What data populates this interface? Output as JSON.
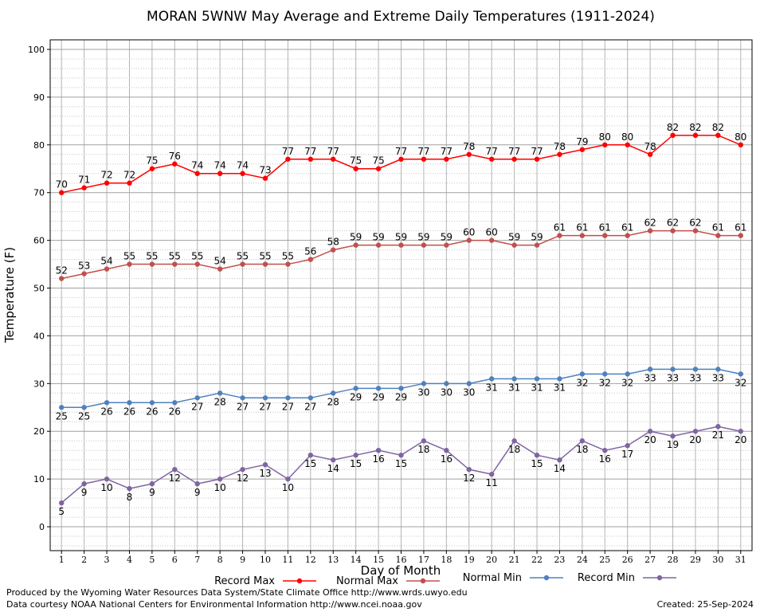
{
  "chart_data": {
    "type": "line",
    "title": "MORAN 5WNW May Average and Extreme Daily Temperatures (1911-2024)",
    "xlabel": "Day of Month",
    "ylabel": "Temperature (F)",
    "xlim": [
      0.5,
      31.5
    ],
    "ylim": [
      -5,
      102
    ],
    "yticks": [
      0,
      10,
      20,
      30,
      40,
      50,
      60,
      70,
      80,
      90,
      100
    ],
    "grid": true,
    "legend_position": "bottom",
    "x": [
      1,
      2,
      3,
      4,
      5,
      6,
      7,
      8,
      9,
      10,
      11,
      12,
      13,
      14,
      15,
      16,
      17,
      18,
      19,
      20,
      21,
      22,
      23,
      24,
      25,
      26,
      27,
      28,
      29,
      30,
      31
    ],
    "series": [
      {
        "name": "Record Max",
        "color": "#ff0000",
        "label_position": "above",
        "values": [
          70,
          71,
          72,
          72,
          75,
          76,
          74,
          74,
          74,
          73,
          77,
          77,
          77,
          75,
          75,
          77,
          77,
          77,
          78,
          77,
          77,
          77,
          78,
          79,
          80,
          80,
          78,
          82,
          82,
          82,
          80
        ]
      },
      {
        "name": "Normal Max",
        "color": "#c0504d",
        "label_position": "above",
        "values": [
          52,
          53,
          54,
          55,
          55,
          55,
          55,
          54,
          55,
          55,
          55,
          56,
          58,
          59,
          59,
          59,
          59,
          59,
          60,
          60,
          59,
          59,
          61,
          61,
          61,
          61,
          62,
          62,
          62,
          61,
          61
        ]
      },
      {
        "name": "Normal Min",
        "color": "#4f81bd",
        "label_position": "below",
        "values": [
          25,
          25,
          26,
          26,
          26,
          26,
          27,
          28,
          27,
          27,
          27,
          27,
          28,
          29,
          29,
          29,
          30,
          30,
          30,
          31,
          31,
          31,
          31,
          32,
          32,
          32,
          33,
          33,
          33,
          33,
          32
        ]
      },
      {
        "name": "Record Min",
        "color": "#8064a2",
        "label_position": "below",
        "values": [
          5,
          9,
          10,
          8,
          9,
          12,
          9,
          10,
          12,
          13,
          10,
          15,
          14,
          15,
          16,
          15,
          18,
          16,
          12,
          11,
          18,
          15,
          14,
          18,
          16,
          17,
          20,
          19,
          20,
          21,
          20
        ]
      }
    ]
  },
  "footer": {
    "produced_by": "Produced by the Wyoming Water Resources Data System/State Climate Office http://www.wrds.uwyo.edu",
    "courtesy": "Data courtesy NOAA National Centers for Environmental Information http://www.ncei.noaa.gov",
    "created": "Created: 25-Sep-2024"
  }
}
